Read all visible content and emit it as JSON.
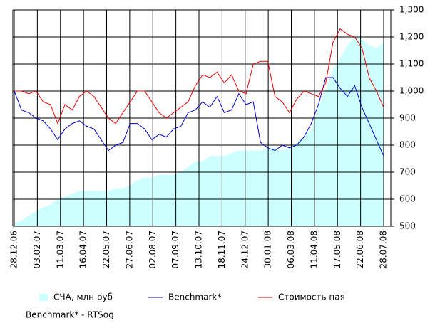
{
  "chart_data": {
    "type": "line",
    "x_labels": [
      "28.12.06",
      "03.02.07",
      "11.03.07",
      "16.04.07",
      "22.05.07",
      "27.06.07",
      "02.08.07",
      "07.09.07",
      "13.10.07",
      "18.11.07",
      "24.12.07",
      "30.01.08",
      "06.03.08",
      "11.04.08",
      "17.05.08",
      "22.06.08",
      "28.07.08"
    ],
    "series": [
      {
        "name": "СЧА, млн руб",
        "kind": "area",
        "color": "#ccffff",
        "values": [
          510,
          520,
          540,
          555,
          570,
          580,
          600,
          610,
          620,
          630,
          630,
          630,
          630,
          630,
          640,
          640,
          650,
          670,
          680,
          680,
          690,
          690,
          690,
          700,
          720,
          740,
          740,
          760,
          760,
          760,
          770,
          780,
          780,
          780,
          780,
          790,
          790,
          780,
          790,
          810,
          830,
          860,
          940,
          1000,
          1080,
          1120,
          1170,
          1200,
          1190,
          1170,
          1160,
          1180
        ]
      },
      {
        "name": "Benchmark*",
        "kind": "line",
        "color": "#0000cc",
        "values": [
          1000,
          930,
          920,
          900,
          890,
          860,
          820,
          860,
          880,
          890,
          870,
          860,
          820,
          780,
          800,
          810,
          880,
          880,
          860,
          820,
          840,
          830,
          860,
          870,
          920,
          930,
          960,
          940,
          980,
          920,
          930,
          990,
          950,
          960,
          810,
          790,
          780,
          800,
          790,
          800,
          830,
          880,
          950,
          1050,
          1050,
          1010,
          980,
          1020,
          940,
          880,
          820,
          760
        ]
      },
      {
        "name": "Стоимость пая",
        "kind": "line",
        "color": "#ee0000",
        "values": [
          1000,
          1000,
          990,
          1000,
          960,
          950,
          880,
          950,
          930,
          980,
          1000,
          980,
          940,
          900,
          880,
          920,
          960,
          1000,
          1000,
          960,
          920,
          900,
          920,
          940,
          960,
          1020,
          1060,
          1050,
          1070,
          1030,
          1060,
          1000,
          990,
          1100,
          1110,
          1110,
          980,
          960,
          920,
          970,
          1000,
          990,
          980,
          1030,
          1180,
          1230,
          1210,
          1200,
          1160,
          1050,
          1000,
          940
        ]
      }
    ],
    "ylim": [
      500,
      1300
    ],
    "yticks": [
      500,
      600,
      700,
      800,
      900,
      {
        "value": 1000,
        "label": "1,000"
      },
      {
        "value": 1100,
        "label": "1,100"
      },
      {
        "value": 1200,
        "label": "1,200"
      },
      {
        "value": 1300,
        "label": "1,300"
      }
    ],
    "grid": true,
    "note": "Benchmark* - RTSog"
  }
}
